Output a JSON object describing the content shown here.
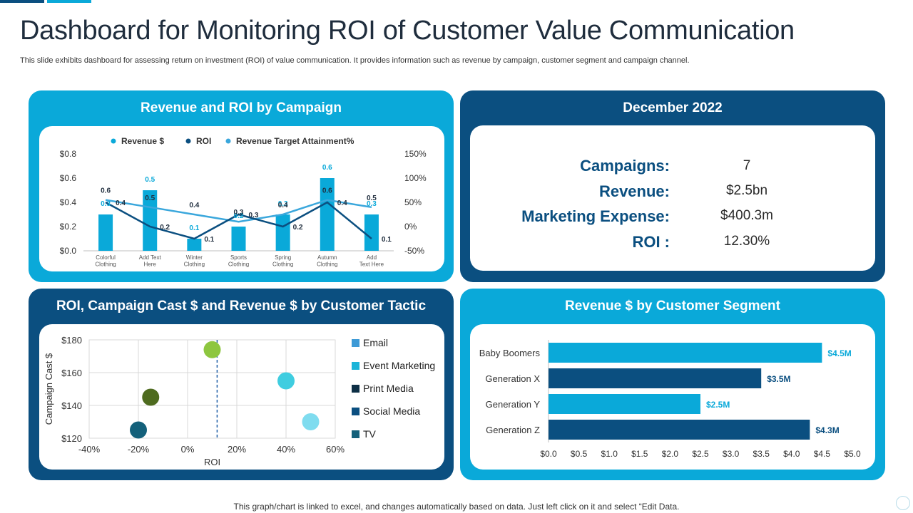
{
  "title": "Dashboard for Monitoring ROI of Customer Value Communication",
  "subtitle": "This slide exhibits dashboard for assessing return on investment (ROI) of value communication. It provides information such as revenue by campaign, customer segment and campaign channel.",
  "footer": "This graph/chart is linked to excel,  and changes automatically based on data. Just left click on it and select “Edit Data.",
  "colors": {
    "light_blue": "#0aa9d9",
    "dark_blue": "#0b4f80",
    "line_blue": "#3aa7dc"
  },
  "panels": {
    "campaign": {
      "title": "Revenue and ROI by Campaign"
    },
    "summary": {
      "title": "December 2022",
      "rows": [
        {
          "label": "Campaigns:",
          "value": "7"
        },
        {
          "label": "Revenue:",
          "value": "$2.5bn"
        },
        {
          "label": "Marketing Expense:",
          "value": "$400.3m"
        },
        {
          "label": "ROI :",
          "value": "12.30%"
        }
      ]
    },
    "tactic": {
      "title": "ROI, Campaign Cast $ and Revenue $ by Customer Tactic",
      "legend": [
        {
          "label": "Email",
          "color": "#3d9ad6"
        },
        {
          "label": "Event Marketing",
          "color": "#1bb4d8"
        },
        {
          "label": "Print Media",
          "color": "#0d2f45"
        },
        {
          "label": "Social Media",
          "color": "#0b4f80"
        },
        {
          "label": "TV",
          "color": "#13607a"
        }
      ]
    },
    "segment": {
      "title": "Revenue $ by Customer Segment"
    }
  },
  "chart_data": [
    {
      "type": "bar",
      "title": "Revenue and ROI by Campaign",
      "categories": [
        [
          "Colorful",
          "Clothing"
        ],
        [
          "Add Text",
          "Here"
        ],
        [
          "Winter",
          "Clothing"
        ],
        [
          "Sports",
          "Clothing"
        ],
        [
          "Spring",
          "Clothing"
        ],
        [
          "Autumn",
          "Clothing"
        ],
        [
          "Add",
          "Text Here"
        ]
      ],
      "series": [
        {
          "name": "Revenue $",
          "kind": "bar",
          "axis": "left",
          "values": [
            0.3,
            0.5,
            0.1,
            0.2,
            0.3,
            0.6,
            0.3
          ]
        },
        {
          "name": "ROI",
          "kind": "line",
          "axis": "left",
          "values": [
            0.4,
            0.2,
            0.1,
            0.3,
            0.2,
            0.4,
            0.1
          ]
        },
        {
          "name": "Revenue Target Attainment%",
          "kind": "line",
          "axis": "right",
          "values": [
            0.6,
            0.5,
            0.4,
            0.3,
            0.4,
            0.6,
            0.5
          ]
        }
      ],
      "left_axis": {
        "min": 0,
        "max": 0.8,
        "ticks": [
          "$0.0",
          "$0.2",
          "$0.4",
          "$0.6",
          "$0.8"
        ]
      },
      "right_axis": {
        "ticks": [
          "-50%",
          "0%",
          "50%",
          "100%",
          "150%"
        ]
      },
      "legend": [
        {
          "label": "Revenue $",
          "color": "#0aa9d9"
        },
        {
          "label": "ROI",
          "color": "#0b4f80"
        },
        {
          "label": "Revenue Target Attainment%",
          "color": "#3aa7dc"
        }
      ]
    },
    {
      "type": "scatter",
      "title": "ROI, Campaign Cast $ and Revenue $ by Customer Tactic",
      "xlabel": "ROI",
      "ylabel": "Campaign Cast $",
      "xlim": [
        -0.4,
        0.6
      ],
      "ylim": [
        120,
        180
      ],
      "x_ticks": [
        "-40%",
        "-20%",
        "0%",
        "20%",
        "40%",
        "60%"
      ],
      "y_ticks": [
        "$120",
        "$140",
        "$160",
        "$180"
      ],
      "reference_x": 0.12,
      "points": [
        {
          "x": 0.1,
          "y": 174,
          "color": "#8dc63f"
        },
        {
          "x": -0.15,
          "y": 145,
          "color": "#4e6b1f"
        },
        {
          "x": -0.2,
          "y": 125,
          "color": "#13607a"
        },
        {
          "x": 0.4,
          "y": 155,
          "color": "#3fcde0"
        },
        {
          "x": 0.5,
          "y": 130,
          "color": "#7fdcef"
        }
      ]
    },
    {
      "type": "bar",
      "orientation": "horizontal",
      "title": "Revenue $ by Customer Segment",
      "categories": [
        "Baby Boomers",
        "Generation X",
        "Generation Y",
        "Generation Z"
      ],
      "values": [
        4.5,
        3.5,
        2.5,
        4.3
      ],
      "labels": [
        "$4.5M",
        "$3.5M",
        "$2.5M",
        "$4.3M"
      ],
      "colors": [
        "#0aa9d9",
        "#0b4f80",
        "#0aa9d9",
        "#0b4f80"
      ],
      "xlim": [
        0,
        5
      ],
      "x_ticks": [
        "$0.0",
        "$0.5",
        "$1.0",
        "$1.5",
        "$2.0",
        "$2.5",
        "$3.0",
        "$3.5",
        "$4.0",
        "$4.5",
        "$5.0"
      ]
    }
  ]
}
